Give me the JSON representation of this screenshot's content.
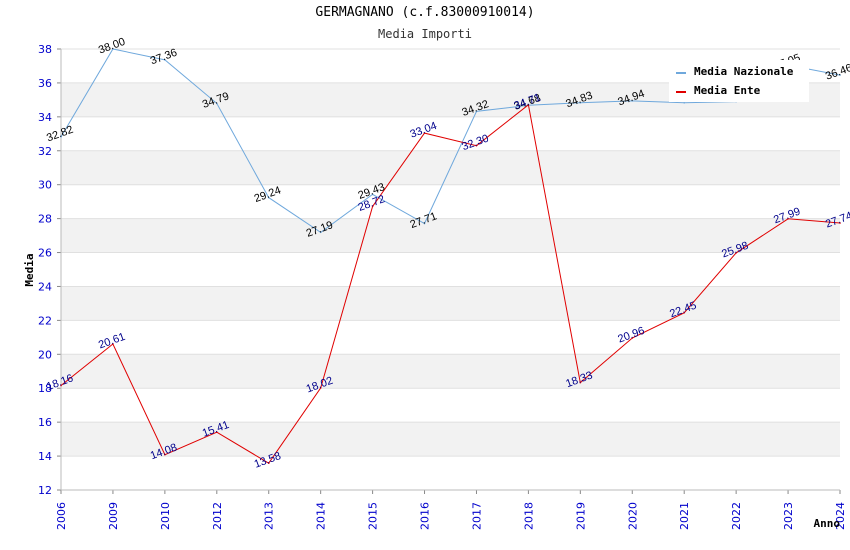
{
  "chart_data": {
    "type": "line",
    "title": "GERMAGNANO (c.f.83000910014)",
    "subtitle": "Media Importi",
    "xlabel": "Anno",
    "ylabel": "Media",
    "ylim": [
      12,
      38
    ],
    "yticks": [
      "12",
      "14",
      "16",
      "18",
      "20",
      "22",
      "24",
      "26",
      "28",
      "30",
      "32",
      "34",
      "36",
      "38"
    ],
    "categories": [
      "2006",
      "2009",
      "2010",
      "2012",
      "2013",
      "2014",
      "2015",
      "2016",
      "2017",
      "2018",
      "2019",
      "2020",
      "2021",
      "2022",
      "2023",
      "2024"
    ],
    "legend_position": "top-right",
    "series": [
      {
        "name": "Media Nazionale",
        "color": "#6fa8dc",
        "label_color": "#000000",
        "values": [
          32.82,
          38.0,
          37.36,
          34.79,
          29.24,
          27.19,
          29.43,
          27.71,
          34.32,
          34.68,
          34.83,
          34.94,
          34.83,
          34.9,
          37.05,
          36.46
        ],
        "labels": [
          "32.82",
          "38.00",
          "37.36",
          "34.79",
          "29.24",
          "27.19",
          "29.43",
          "27.71",
          "34.32",
          "34.68",
          "34.83",
          "34.94",
          "",
          "",
          "37.05",
          "36.46"
        ]
      },
      {
        "name": "Media Ente",
        "color": "#e00000",
        "label_color": "#00008b",
        "values": [
          18.16,
          20.61,
          14.08,
          15.41,
          13.58,
          18.02,
          28.72,
          33.04,
          32.3,
          34.71,
          18.33,
          20.96,
          22.45,
          25.98,
          27.99,
          27.74
        ],
        "labels": [
          "18.16",
          "20.61",
          "14.08",
          "15.41",
          "13.58",
          "18.02",
          "28.72",
          "33.04",
          "32.30",
          "34.71",
          "18.33",
          "20.96",
          "22.45",
          "25.98",
          "27.99",
          "27.74"
        ]
      }
    ]
  }
}
